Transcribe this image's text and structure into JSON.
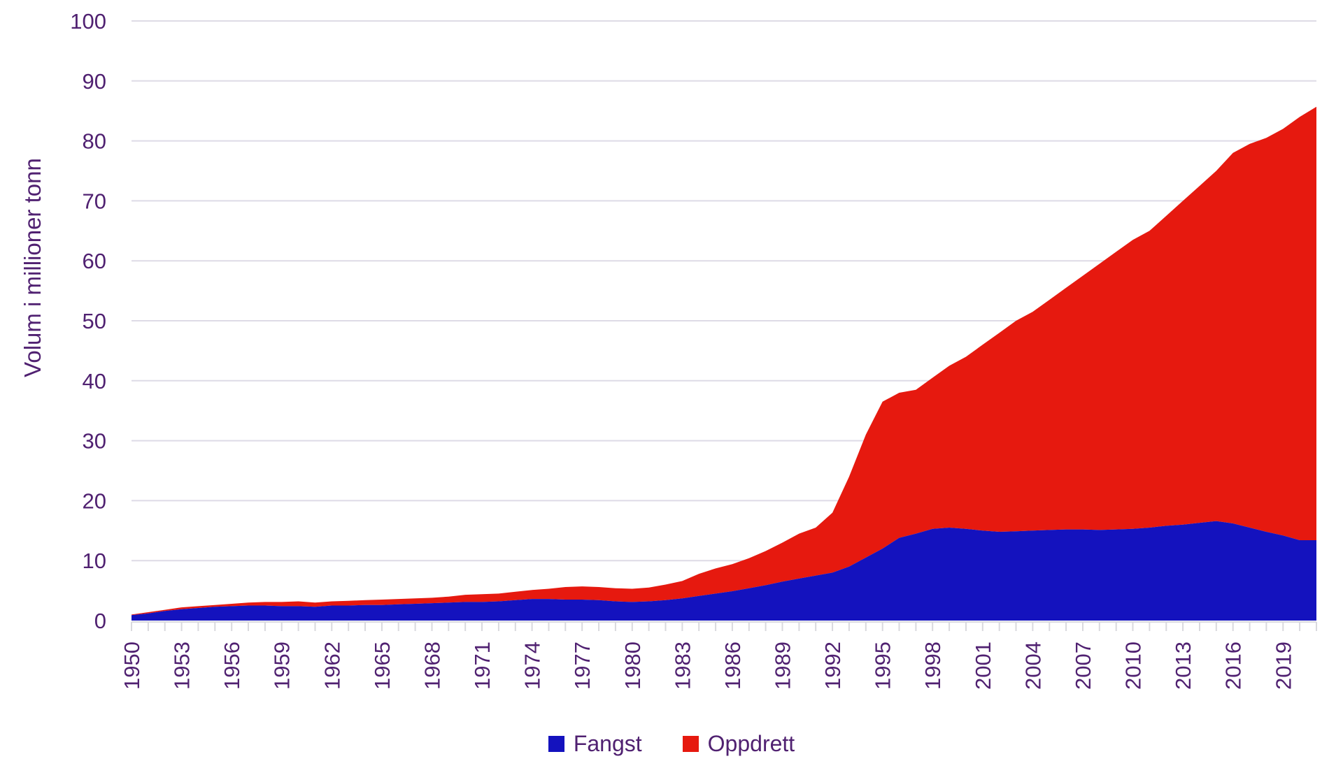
{
  "chart_data": {
    "type": "area",
    "stacked": true,
    "title": "",
    "ylabel": "Volum i millioner tonn",
    "xlabel": "",
    "ylim": [
      0,
      100
    ],
    "y_ticks": [
      0,
      10,
      20,
      30,
      40,
      50,
      60,
      70,
      80,
      90,
      100
    ],
    "x_tick_labels": [
      "1950",
      "1953",
      "1956",
      "1959",
      "1962",
      "1965",
      "1968",
      "1971",
      "1974",
      "1977",
      "1980",
      "1983",
      "1986",
      "1989",
      "1992",
      "1995",
      "1998",
      "2001",
      "2004",
      "2007",
      "2010",
      "2013",
      "2016",
      "2019"
    ],
    "years": [
      1950,
      1951,
      1952,
      1953,
      1954,
      1955,
      1956,
      1957,
      1958,
      1959,
      1960,
      1961,
      1962,
      1963,
      1964,
      1965,
      1966,
      1967,
      1968,
      1969,
      1970,
      1971,
      1972,
      1973,
      1974,
      1975,
      1976,
      1977,
      1978,
      1979,
      1980,
      1981,
      1982,
      1983,
      1984,
      1985,
      1986,
      1987,
      1988,
      1989,
      1990,
      1991,
      1992,
      1993,
      1994,
      1995,
      1996,
      1997,
      1998,
      1999,
      2000,
      2001,
      2002,
      2003,
      2004,
      2005,
      2006,
      2007,
      2008,
      2009,
      2010,
      2011,
      2012,
      2013,
      2014,
      2015,
      2016,
      2017,
      2018,
      2019,
      2020,
      2021
    ],
    "series": [
      {
        "name": "Fangst",
        "color": "#1412BE",
        "values": [
          0.9,
          1.2,
          1.6,
          1.9,
          2.1,
          2.3,
          2.4,
          2.5,
          2.5,
          2.4,
          2.4,
          2.3,
          2.5,
          2.5,
          2.6,
          2.6,
          2.7,
          2.8,
          2.9,
          3.0,
          3.1,
          3.1,
          3.2,
          3.4,
          3.6,
          3.6,
          3.5,
          3.5,
          3.4,
          3.2,
          3.1,
          3.2,
          3.4,
          3.7,
          4.1,
          4.5,
          4.9,
          5.4,
          5.9,
          6.5,
          7.0,
          7.5,
          8.0,
          9.0,
          10.5,
          12.0,
          13.8,
          14.5,
          15.3,
          15.5,
          15.3,
          15.0,
          14.8,
          14.9,
          15.0,
          15.1,
          15.2,
          15.2,
          15.1,
          15.2,
          15.3,
          15.5,
          15.8,
          16.0,
          16.3,
          16.6,
          16.2,
          15.5,
          14.8,
          14.2,
          13.4,
          13.4
        ]
      },
      {
        "name": "Oppdrett",
        "color": "#E6190F",
        "values": [
          0.1,
          0.2,
          0.2,
          0.3,
          0.3,
          0.3,
          0.4,
          0.5,
          0.6,
          0.7,
          0.8,
          0.7,
          0.7,
          0.8,
          0.8,
          0.9,
          0.9,
          0.9,
          0.9,
          1.0,
          1.2,
          1.3,
          1.3,
          1.4,
          1.5,
          1.7,
          2.1,
          2.2,
          2.2,
          2.2,
          2.2,
          2.3,
          2.6,
          2.9,
          3.7,
          4.2,
          4.5,
          5.0,
          5.7,
          6.5,
          7.5,
          8.0,
          10.0,
          15.0,
          20.5,
          24.5,
          24.2,
          24.0,
          25.2,
          27.0,
          28.7,
          31.0,
          33.2,
          35.1,
          36.5,
          38.4,
          40.3,
          42.3,
          44.4,
          46.3,
          48.2,
          49.5,
          51.7,
          54.0,
          56.2,
          58.4,
          61.8,
          64.0,
          65.7,
          67.8,
          70.6,
          72.3
        ]
      }
    ],
    "legend_position": "bottom",
    "grid": true,
    "colors": {
      "axis_text": "#502171",
      "gridline": "#DEDBE6",
      "tick": "#D9D9DE",
      "background": "#FFFFFF"
    }
  }
}
